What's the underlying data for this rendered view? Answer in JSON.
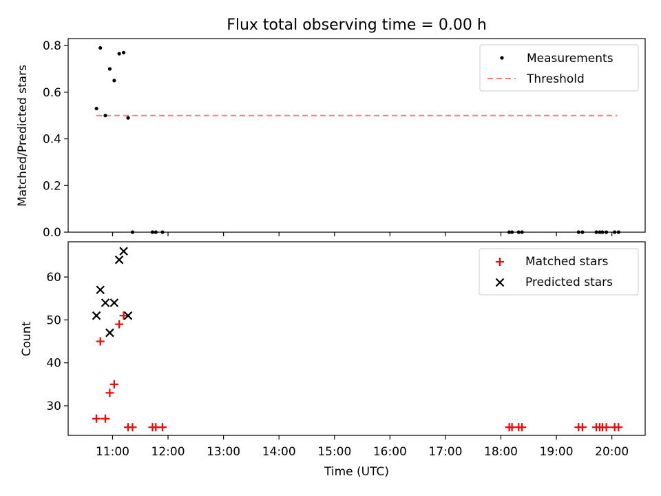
{
  "title": "Flux total observing time = 0.00 h",
  "colors": {
    "measurement": "#000000",
    "threshold": "#ff7f7f",
    "matched": "#ff0000",
    "predicted": "#000000"
  },
  "chart_data": [
    {
      "type": "scatter",
      "panel": "top",
      "ylabel": "Matched/Predicted stars",
      "ylim": [
        0,
        0.83
      ],
      "yticks": [
        0.0,
        0.2,
        0.4,
        0.6,
        0.8
      ],
      "ytick_labels": [
        "0.0",
        "0.2",
        "0.4",
        "0.6",
        "0.8"
      ],
      "x_unit": "hours UTC",
      "xlim": [
        10.2,
        20.6
      ],
      "legend_position": "top-right",
      "legend": [
        "Measurements",
        "Threshold"
      ],
      "series": [
        {
          "name": "Measurements",
          "marker": "dot",
          "x": [
            10.71,
            10.78,
            10.87,
            10.95,
            11.03,
            11.12,
            11.2,
            11.28,
            11.36,
            11.72,
            11.78,
            11.9,
            18.15,
            18.2,
            18.32,
            18.38,
            19.4,
            19.47,
            19.72,
            19.78,
            19.83,
            19.9,
            20.05,
            20.12
          ],
          "y": [
            0.53,
            0.79,
            0.5,
            0.7,
            0.65,
            0.765,
            0.77,
            0.49,
            0,
            0,
            0,
            0,
            0,
            0,
            0,
            0,
            0,
            0,
            0,
            0,
            0,
            0,
            0,
            0
          ]
        },
        {
          "name": "Threshold",
          "style": "dashed",
          "x": [
            10.71,
            20.1
          ],
          "y": [
            0.5,
            0.5
          ]
        }
      ]
    },
    {
      "type": "scatter",
      "panel": "bottom",
      "xlabel": "Time (UTC)",
      "ylabel": "Count",
      "ylim": [
        23.1,
        68.2
      ],
      "yticks": [
        30,
        40,
        50,
        60
      ],
      "ytick_labels": [
        "30",
        "40",
        "50",
        "60"
      ],
      "xlim": [
        10.2,
        20.6
      ],
      "xticks": [
        11,
        12,
        13,
        14,
        15,
        16,
        17,
        18,
        19,
        20
      ],
      "xtick_labels": [
        "11:00",
        "12:00",
        "13:00",
        "14:00",
        "15:00",
        "16:00",
        "17:00",
        "18:00",
        "19:00",
        "20:00"
      ],
      "legend_position": "top-right",
      "legend": [
        "Matched stars",
        "Predicted stars"
      ],
      "series": [
        {
          "name": "Matched stars",
          "marker": "plus",
          "x": [
            10.71,
            10.78,
            10.87,
            10.95,
            11.03,
            11.12,
            11.2,
            11.28,
            11.36,
            11.72,
            11.78,
            11.9,
            18.15,
            18.2,
            18.32,
            18.38,
            19.4,
            19.47,
            19.72,
            19.78,
            19.83,
            19.9,
            20.05,
            20.12
          ],
          "y": [
            27,
            45,
            27,
            33,
            35,
            49,
            51,
            25,
            25,
            25,
            25,
            25,
            25,
            25,
            25,
            25,
            25,
            25,
            25,
            25,
            25,
            25,
            25,
            25
          ]
        },
        {
          "name": "Predicted stars",
          "marker": "x",
          "x": [
            10.71,
            10.78,
            10.87,
            10.95,
            11.03,
            11.12,
            11.2,
            11.28
          ],
          "y": [
            51,
            57,
            54,
            47,
            54,
            64,
            66,
            51
          ]
        }
      ]
    }
  ]
}
